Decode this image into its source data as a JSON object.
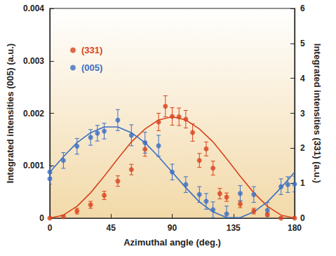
{
  "chart_data": {
    "type": "scatter",
    "x_label": "Azimuthal angle (deg.)",
    "y_label": "Integrated intensities (005) (a.u.)",
    "y2_label": "Integrated intensities (331) (a.u.)",
    "xlim": [
      0,
      180
    ],
    "xticks": [
      0,
      45,
      90,
      135,
      180
    ],
    "ylim": [
      0,
      0.004
    ],
    "yticks": [
      0,
      0.001,
      0.002,
      0.003,
      0.004
    ],
    "y2lim": [
      0,
      6
    ],
    "y2ticks": [
      0,
      1,
      2,
      3,
      4,
      5,
      6
    ],
    "legend": "upper left",
    "series": [
      {
        "name": "(331)",
        "type": "scatter",
        "axis": "y2",
        "color": "#d9431e",
        "marker": "circle",
        "x": [
          0,
          10,
          20,
          30,
          40,
          50,
          60,
          70,
          80,
          85,
          90,
          95,
          100,
          105,
          110,
          115,
          120,
          125,
          130,
          140,
          150,
          160,
          170,
          180
        ],
        "values": [
          0,
          0.04,
          0.2,
          0.38,
          0.65,
          1.06,
          1.39,
          1.97,
          2.75,
          3.2,
          2.91,
          2.9,
          2.83,
          2.45,
          1.65,
          1.98,
          1.43,
          0.7,
          0.6,
          0.4,
          0.2,
          0.1,
          0,
          0
        ],
        "errors": [
          0.03,
          0.05,
          0.08,
          0.1,
          0.12,
          0.15,
          0.15,
          0.2,
          0.25,
          0.3,
          0.25,
          0.25,
          0.25,
          0.25,
          0.2,
          0.2,
          0.2,
          0.15,
          0.12,
          0.1,
          0.08,
          0.05,
          0.03,
          0.03
        ]
      },
      {
        "name": "(005)",
        "type": "scatter",
        "axis": "y",
        "color": "#3b6fc4",
        "marker": "circle",
        "x": [
          0,
          0,
          10,
          20,
          30,
          35,
          40,
          50,
          60,
          70,
          80,
          90,
          100,
          110,
          115,
          120,
          130,
          140,
          150,
          160,
          170,
          175,
          180
        ],
        "values": [
          0.00088,
          0.00075,
          0.0011,
          0.00137,
          0.00154,
          0.00162,
          0.00166,
          0.00187,
          0.00158,
          0.00144,
          0.00138,
          0.00088,
          0.00064,
          0.00045,
          0.00032,
          0.00016,
          8e-05,
          0.00047,
          0.00045,
          0.00015,
          0.0006,
          0.00064,
          0.00065
        ],
        "errors": [
          0.0001,
          0.0001,
          0.00015,
          0.00015,
          0.00015,
          0.00015,
          0.00015,
          0.0002,
          0.0002,
          0.0002,
          0.0002,
          0.00015,
          0.00015,
          0.00015,
          0.00015,
          0.00015,
          0.00015,
          0.00015,
          0.00015,
          0.00015,
          0.00015,
          0.00015,
          0.00015
        ]
      },
      {
        "type": "line",
        "axis": "y2",
        "color": "#d9431e",
        "line_style": "solid",
        "x": [
          0,
          10,
          20,
          30,
          40,
          50,
          60,
          70,
          80,
          90,
          100,
          110,
          120,
          130,
          140,
          150,
          160,
          170,
          180
        ],
        "values": [
          0,
          0.087,
          0.34,
          0.725,
          1.2,
          1.7,
          2.18,
          2.55,
          2.81,
          2.9,
          2.81,
          2.55,
          2.18,
          1.7,
          1.2,
          0.725,
          0.34,
          0.087,
          0
        ]
      },
      {
        "type": "line",
        "axis": "y",
        "color": "#3b6fc4",
        "line_style": "solid",
        "x": [
          0,
          10,
          20,
          30,
          40,
          50,
          60,
          70,
          80,
          90,
          100,
          110,
          120,
          130,
          140,
          150,
          160,
          170,
          180
        ],
        "values": [
          0.000875,
          0.00117,
          0.00144,
          0.00163,
          0.00174,
          0.00174,
          0.00163,
          0.00144,
          0.00117,
          0.000875,
          0.00058,
          0.00031,
          0.00012,
          1e-05,
          1e-05,
          0.00012,
          0.00031,
          0.00058,
          0.000875
        ]
      }
    ]
  }
}
